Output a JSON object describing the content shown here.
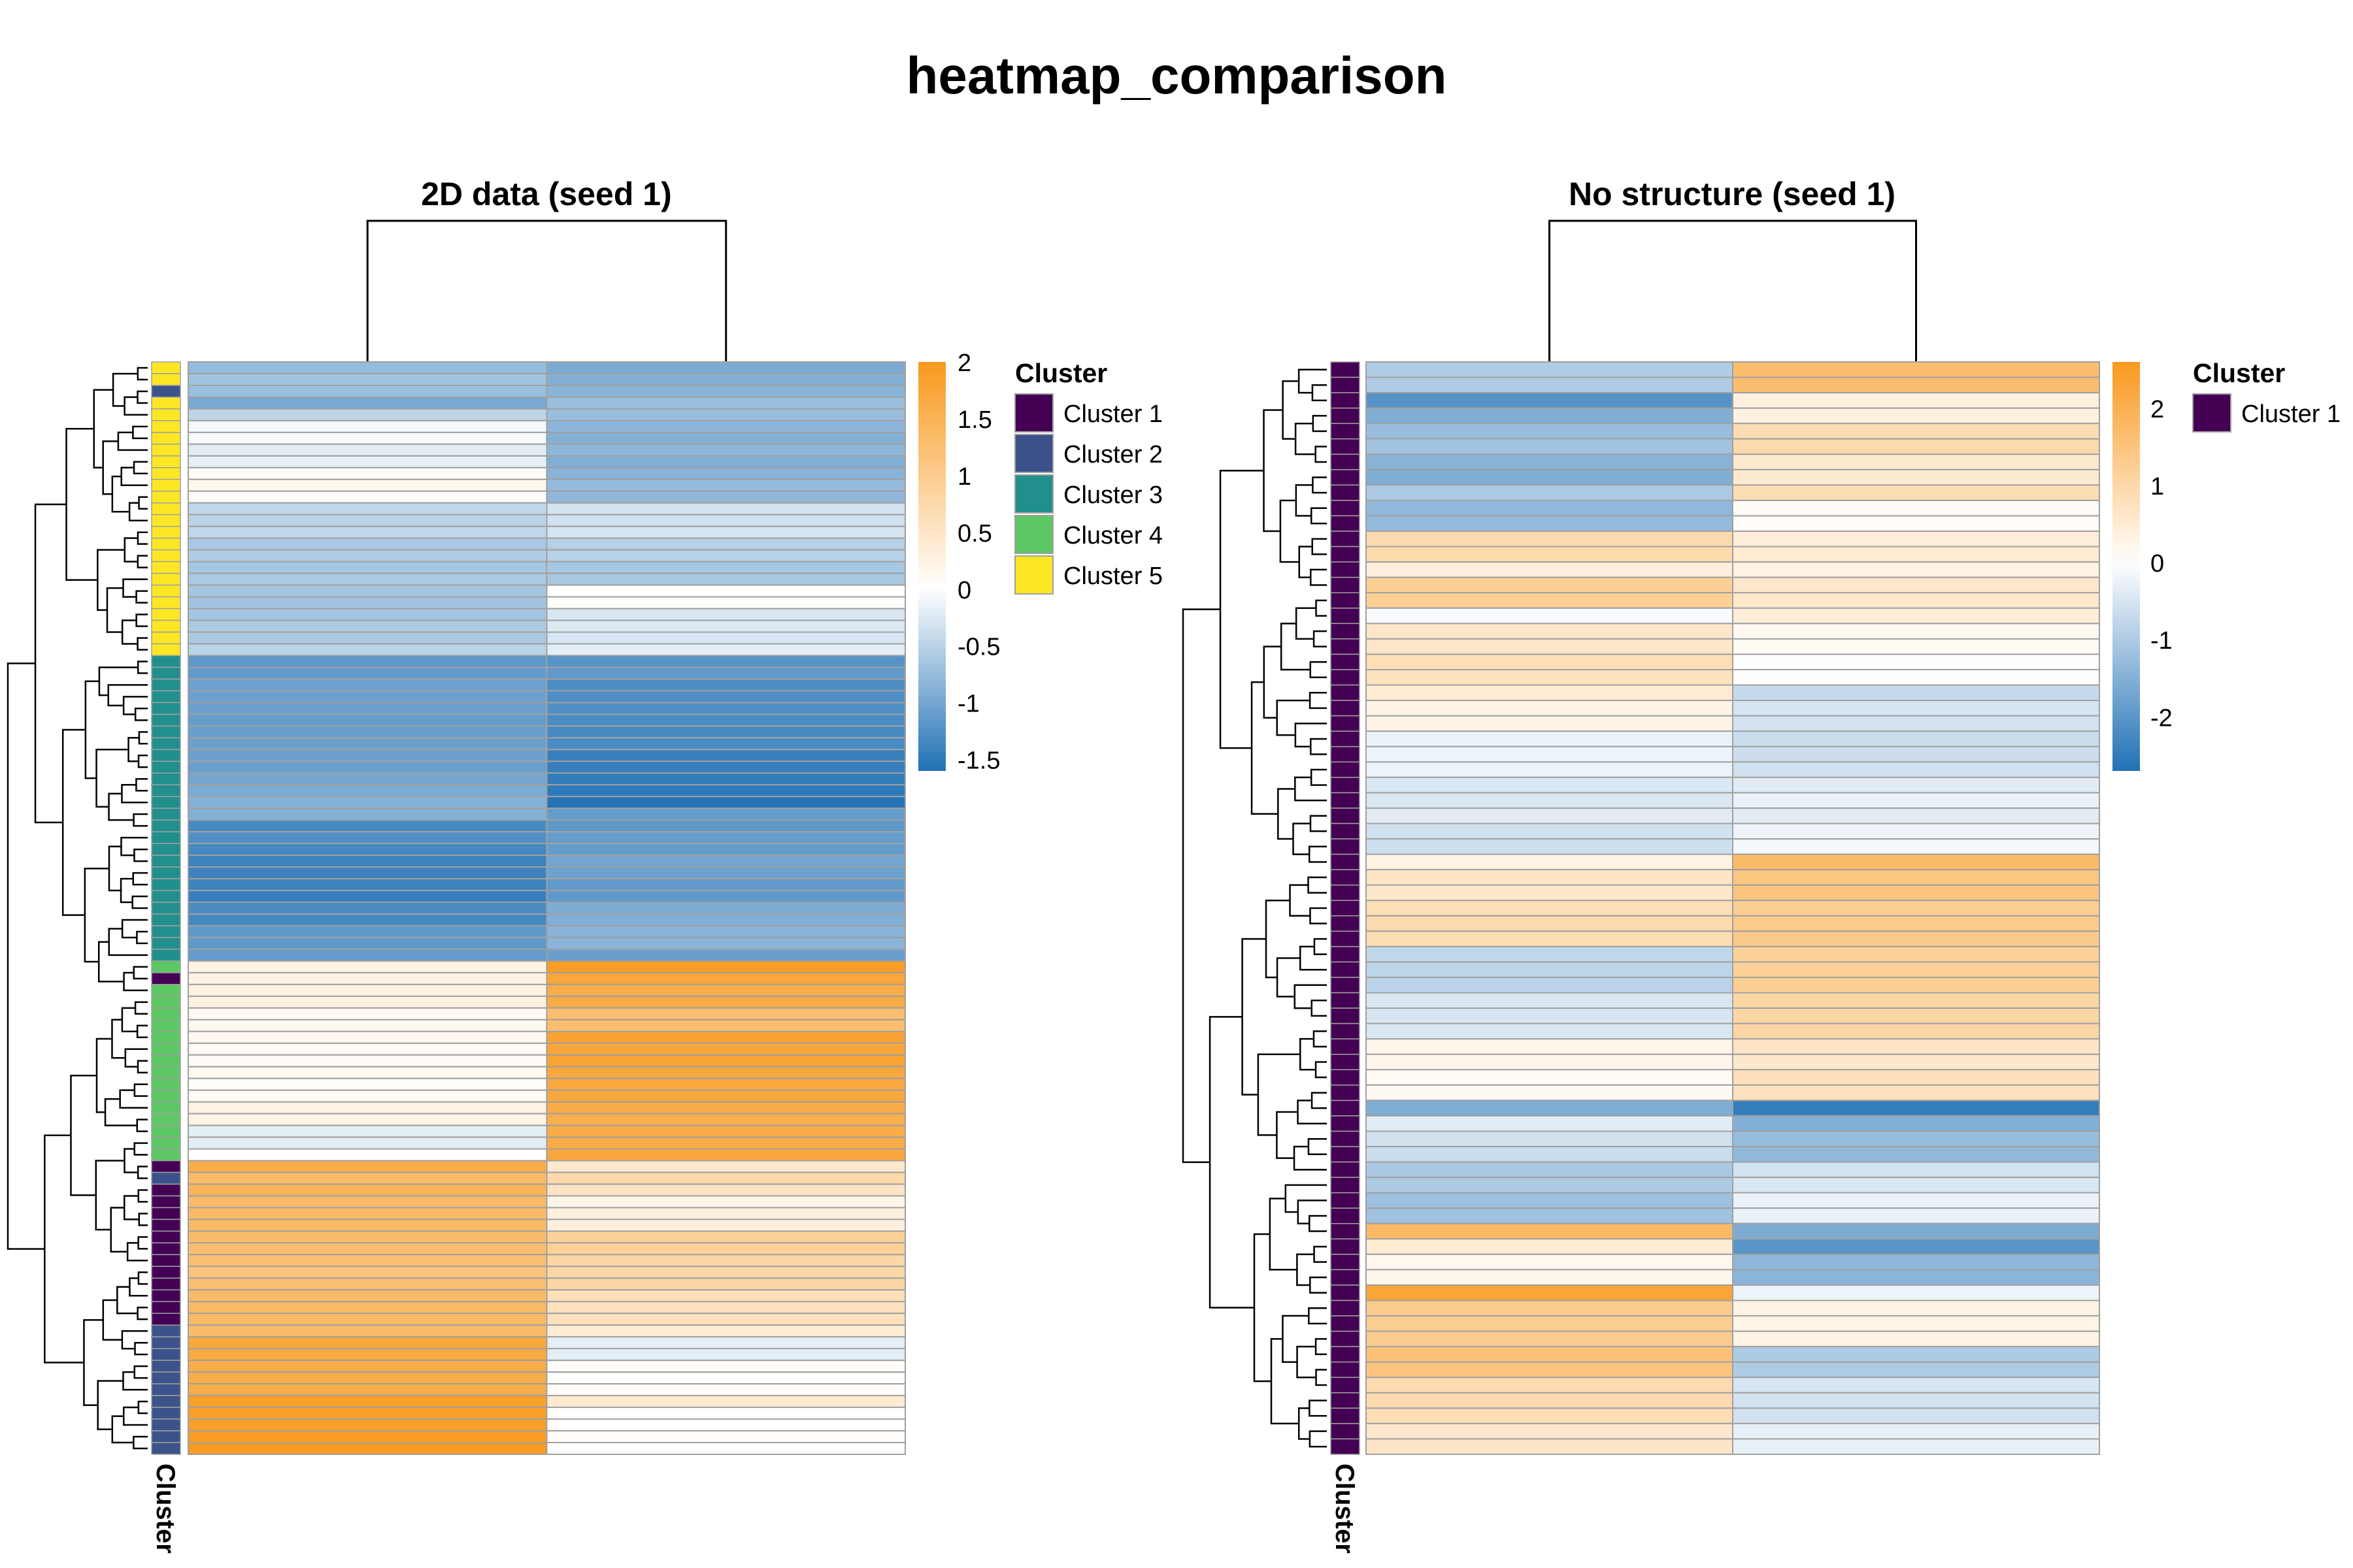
{
  "page_title": "heatmap_comparison",
  "chart_data": [
    {
      "type": "heatmap",
      "title": "2D data (seed 1)",
      "annotation_label": "Cluster",
      "legend": {
        "title": "Cluster",
        "entries": [
          {
            "name": "Cluster 1",
            "color": "#440154"
          },
          {
            "name": "Cluster 2",
            "color": "#3B528B"
          },
          {
            "name": "Cluster 3",
            "color": "#21908C"
          },
          {
            "name": "Cluster 4",
            "color": "#5DC863"
          },
          {
            "name": "Cluster 5",
            "color": "#FDE725"
          }
        ]
      },
      "colorbar": {
        "min": -1.6,
        "max": 2.0,
        "ticks": [
          2,
          1.5,
          1,
          0.5,
          0,
          -0.5,
          -1,
          -1.5
        ],
        "tick_labels": [
          "2",
          "1.5",
          "1",
          "0.5",
          "0",
          "-0.5",
          "-1",
          "-1.5"
        ]
      },
      "columns": 2,
      "row_groups": [
        {
          "n": 1,
          "cluster": 5,
          "values": [
            -0.7,
            -1.0
          ]
        },
        {
          "n": 1,
          "cluster": 5,
          "values": [
            -0.65,
            -0.85
          ]
        },
        {
          "n": 1,
          "cluster": 2,
          "values": [
            -0.75,
            -0.85
          ]
        },
        {
          "n": 1,
          "cluster": 5,
          "values": [
            -0.95,
            -0.75
          ]
        },
        {
          "n": 1,
          "cluster": 5,
          "values": [
            -0.5,
            -0.75
          ]
        },
        {
          "n": 2,
          "cluster": 5,
          "values": [
            -0.1,
            -0.85
          ]
        },
        {
          "n": 2,
          "cluster": 5,
          "values": [
            -0.2,
            -0.85
          ]
        },
        {
          "n": 1,
          "cluster": 5,
          "values": [
            0.05,
            -0.85
          ]
        },
        {
          "n": 2,
          "cluster": 5,
          "values": [
            0.1,
            -0.8
          ]
        },
        {
          "n": 3,
          "cluster": 5,
          "values": [
            -0.5,
            -0.35
          ]
        },
        {
          "n": 2,
          "cluster": 5,
          "values": [
            -0.6,
            -0.5
          ]
        },
        {
          "n": 2,
          "cluster": 5,
          "values": [
            -0.6,
            -0.6
          ]
        },
        {
          "n": 2,
          "cluster": 5,
          "values": [
            -0.7,
            0.0
          ]
        },
        {
          "n": 3,
          "cluster": 5,
          "values": [
            -0.6,
            -0.25
          ]
        },
        {
          "n": 1,
          "cluster": 5,
          "values": [
            -0.55,
            -0.15
          ]
        },
        {
          "n": 2,
          "cluster": 3,
          "values": [
            -1.15,
            -1.2
          ]
        },
        {
          "n": 3,
          "cluster": 3,
          "values": [
            -1.05,
            -1.25
          ]
        },
        {
          "n": 3,
          "cluster": 3,
          "values": [
            -1.1,
            -1.3
          ]
        },
        {
          "n": 2,
          "cluster": 3,
          "values": [
            -1.1,
            -1.45
          ]
        },
        {
          "n": 2,
          "cluster": 3,
          "values": [
            -1.0,
            -1.5
          ]
        },
        {
          "n": 1,
          "cluster": 3,
          "values": [
            -0.9,
            -1.55
          ]
        },
        {
          "n": 1,
          "cluster": 3,
          "values": [
            -0.9,
            -1.1
          ]
        },
        {
          "n": 3,
          "cluster": 3,
          "values": [
            -1.3,
            -1.15
          ]
        },
        {
          "n": 2,
          "cluster": 3,
          "values": [
            -1.35,
            -1.0
          ]
        },
        {
          "n": 2,
          "cluster": 3,
          "values": [
            -1.45,
            -1.1
          ]
        },
        {
          "n": 2,
          "cluster": 3,
          "values": [
            -1.3,
            -0.95
          ]
        },
        {
          "n": 2,
          "cluster": 3,
          "values": [
            -1.2,
            -0.9
          ]
        },
        {
          "n": 1,
          "cluster": 3,
          "values": [
            -1.15,
            -1.05
          ]
        },
        {
          "n": 1,
          "cluster": 4,
          "values": [
            0.3,
            1.95
          ]
        },
        {
          "n": 1,
          "cluster": 1,
          "values": [
            0.3,
            1.8
          ]
        },
        {
          "n": 2,
          "cluster": 4,
          "values": [
            0.25,
            1.65
          ]
        },
        {
          "n": 2,
          "cluster": 4,
          "values": [
            0.1,
            1.3
          ]
        },
        {
          "n": 3,
          "cluster": 4,
          "values": [
            0.15,
            1.75
          ]
        },
        {
          "n": 3,
          "cluster": 4,
          "values": [
            0.1,
            1.65
          ]
        },
        {
          "n": 2,
          "cluster": 4,
          "values": [
            0.25,
            1.6
          ]
        },
        {
          "n": 2,
          "cluster": 4,
          "values": [
            -0.15,
            1.6
          ]
        },
        {
          "n": 1,
          "cluster": 4,
          "values": [
            0.0,
            1.7
          ]
        },
        {
          "n": 1,
          "cluster": 1,
          "values": [
            1.6,
            0.5
          ]
        },
        {
          "n": 1,
          "cluster": 2,
          "values": [
            1.4,
            0.7
          ]
        },
        {
          "n": 1,
          "cluster": 1,
          "values": [
            1.5,
            0.5
          ]
        },
        {
          "n": 3,
          "cluster": 1,
          "values": [
            1.3,
            0.25
          ]
        },
        {
          "n": 2,
          "cluster": 1,
          "values": [
            1.3,
            0.9
          ]
        },
        {
          "n": 3,
          "cluster": 1,
          "values": [
            1.2,
            0.8
          ]
        },
        {
          "n": 3,
          "cluster": 1,
          "values": [
            1.35,
            0.6
          ]
        },
        {
          "n": 1,
          "cluster": 2,
          "values": [
            1.35,
            0.4
          ]
        },
        {
          "n": 2,
          "cluster": 2,
          "values": [
            1.65,
            -0.25
          ]
        },
        {
          "n": 1,
          "cluster": 2,
          "values": [
            1.55,
            0.1
          ]
        },
        {
          "n": 2,
          "cluster": 2,
          "values": [
            1.6,
            0.05
          ]
        },
        {
          "n": 1,
          "cluster": 2,
          "values": [
            1.85,
            0.35
          ]
        },
        {
          "n": 3,
          "cluster": 2,
          "values": [
            1.9,
            0.05
          ]
        },
        {
          "n": 1,
          "cluster": 2,
          "values": [
            1.95,
            0.0
          ]
        }
      ]
    },
    {
      "type": "heatmap",
      "title": "No structure (seed 1)",
      "annotation_label": "Cluster",
      "legend": {
        "title": "Cluster",
        "entries": [
          {
            "name": "Cluster 1",
            "color": "#440154"
          }
        ]
      },
      "colorbar": {
        "min": -2.7,
        "max": 2.6,
        "ticks": [
          2,
          1,
          0,
          -1,
          -2
        ],
        "tick_labels": [
          "2",
          "1",
          "0",
          "-1",
          "-2"
        ]
      },
      "columns": 2,
      "row_groups": [
        {
          "n": 2,
          "cluster": 1,
          "values": [
            -1.0,
            1.7
          ]
        },
        {
          "n": 1,
          "cluster": 1,
          "values": [
            -2.0,
            0.3
          ]
        },
        {
          "n": 1,
          "cluster": 1,
          "values": [
            -1.6,
            0.4
          ]
        },
        {
          "n": 2,
          "cluster": 1,
          "values": [
            -1.2,
            0.9
          ]
        },
        {
          "n": 2,
          "cluster": 1,
          "values": [
            -1.5,
            0.6
          ]
        },
        {
          "n": 1,
          "cluster": 1,
          "values": [
            -1.0,
            0.85
          ]
        },
        {
          "n": 2,
          "cluster": 1,
          "values": [
            -1.3,
            0.1
          ]
        },
        {
          "n": 2,
          "cluster": 1,
          "values": [
            1.0,
            0.5
          ]
        },
        {
          "n": 1,
          "cluster": 1,
          "values": [
            0.4,
            0.3
          ]
        },
        {
          "n": 2,
          "cluster": 1,
          "values": [
            1.2,
            0.6
          ]
        },
        {
          "n": 1,
          "cluster": 1,
          "values": [
            -0.1,
            0.4
          ]
        },
        {
          "n": 2,
          "cluster": 1,
          "values": [
            0.6,
            0.1
          ]
        },
        {
          "n": 2,
          "cluster": 1,
          "values": [
            0.8,
            0.0
          ]
        },
        {
          "n": 1,
          "cluster": 1,
          "values": [
            0.5,
            -0.7
          ]
        },
        {
          "n": 2,
          "cluster": 1,
          "values": [
            0.3,
            -0.5
          ]
        },
        {
          "n": 3,
          "cluster": 1,
          "values": [
            -0.2,
            -0.6
          ]
        },
        {
          "n": 3,
          "cluster": 1,
          "values": [
            -0.4,
            -0.3
          ]
        },
        {
          "n": 2,
          "cluster": 1,
          "values": [
            -0.6,
            -0.2
          ]
        },
        {
          "n": 1,
          "cluster": 1,
          "values": [
            0.3,
            1.8
          ]
        },
        {
          "n": 2,
          "cluster": 1,
          "values": [
            0.6,
            1.5
          ]
        },
        {
          "n": 3,
          "cluster": 1,
          "values": [
            0.9,
            1.3
          ]
        },
        {
          "n": 3,
          "cluster": 1,
          "values": [
            -0.8,
            1.2
          ]
        },
        {
          "n": 3,
          "cluster": 1,
          "values": [
            -0.5,
            1.0
          ]
        },
        {
          "n": 2,
          "cluster": 1,
          "values": [
            0.2,
            0.6
          ]
        },
        {
          "n": 2,
          "cluster": 1,
          "values": [
            0.1,
            0.8
          ]
        },
        {
          "n": 1,
          "cluster": 1,
          "values": [
            -1.6,
            -2.5
          ]
        },
        {
          "n": 1,
          "cluster": 1,
          "values": [
            -0.4,
            -1.5
          ]
        },
        {
          "n": 2,
          "cluster": 1,
          "values": [
            -0.6,
            -1.3
          ]
        },
        {
          "n": 2,
          "cluster": 1,
          "values": [
            -1.0,
            -0.5
          ]
        },
        {
          "n": 2,
          "cluster": 1,
          "values": [
            -1.2,
            -0.3
          ]
        },
        {
          "n": 1,
          "cluster": 1,
          "values": [
            1.8,
            -1.6
          ]
        },
        {
          "n": 1,
          "cluster": 1,
          "values": [
            0.5,
            -2.0
          ]
        },
        {
          "n": 2,
          "cluster": 1,
          "values": [
            0.2,
            -1.4
          ]
        },
        {
          "n": 1,
          "cluster": 1,
          "values": [
            2.3,
            -0.2
          ]
        },
        {
          "n": 3,
          "cluster": 1,
          "values": [
            1.3,
            0.3
          ]
        },
        {
          "n": 2,
          "cluster": 1,
          "values": [
            1.5,
            -1.0
          ]
        },
        {
          "n": 3,
          "cluster": 1,
          "values": [
            0.9,
            -0.5
          ]
        },
        {
          "n": 2,
          "cluster": 1,
          "values": [
            0.6,
            -0.3
          ]
        }
      ]
    }
  ]
}
